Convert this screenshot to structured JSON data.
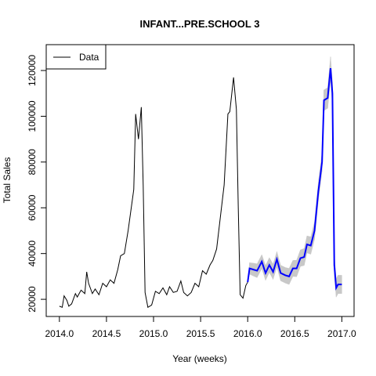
{
  "chart_data": {
    "type": "line",
    "title": "INFANT...PRE.SCHOOL 3",
    "x_label": "Year (weeks)",
    "y_label": "Total Sales",
    "x": [
      2014.0,
      2014.03,
      2014.05,
      2014.08,
      2014.1,
      2014.13,
      2014.17,
      2014.19,
      2014.23,
      2014.27,
      2014.29,
      2014.31,
      2014.35,
      2014.38,
      2014.42,
      2014.46,
      2014.5,
      2014.54,
      2014.58,
      2014.62,
      2014.65,
      2014.69,
      2014.73,
      2014.75,
      2014.79,
      2014.81,
      2014.84,
      2014.87,
      2014.89,
      2014.91,
      2014.94,
      2014.98,
      2015.02,
      2015.06,
      2015.1,
      2015.14,
      2015.17,
      2015.21,
      2015.25,
      2015.29,
      2015.32,
      2015.36,
      2015.4,
      2015.44,
      2015.48,
      2015.52,
      2015.56,
      2015.6,
      2015.63,
      2015.67,
      2015.71,
      2015.75,
      2015.79,
      2015.81,
      2015.85,
      2015.88,
      2015.9,
      2015.92,
      2015.95,
      2015.98,
      2016.0
    ],
    "series": [
      {
        "name": "Data",
        "color": "#000000",
        "values": [
          17000,
          16500,
          21500,
          19500,
          17000,
          18000,
          22500,
          21000,
          24000,
          22500,
          32000,
          27000,
          22500,
          24500,
          22000,
          27000,
          25500,
          28500,
          27000,
          33000,
          39000,
          40000,
          50000,
          56000,
          68000,
          101000,
          90000,
          104000,
          70000,
          23000,
          16500,
          17500,
          23500,
          22500,
          25000,
          22000,
          25500,
          23000,
          23500,
          28000,
          23000,
          21500,
          23000,
          27000,
          25500,
          32500,
          31000,
          35000,
          37000,
          42000,
          56000,
          70000,
          101000,
          102000,
          117000,
          103000,
          60000,
          22000,
          20500,
          26000,
          27500
        ]
      }
    ],
    "forecast": {
      "color": "#0000ff",
      "band_color": "#c8c8c8",
      "x": [
        2016.0,
        2016.02,
        2016.06,
        2016.1,
        2016.15,
        2016.19,
        2016.23,
        2016.27,
        2016.31,
        2016.35,
        2016.4,
        2016.44,
        2016.48,
        2016.52,
        2016.56,
        2016.6,
        2016.63,
        2016.67,
        2016.71,
        2016.75,
        2016.79,
        2016.81,
        2016.85,
        2016.88,
        2016.9,
        2016.92,
        2016.94,
        2016.96,
        2017.0
      ],
      "values": [
        27500,
        33500,
        33000,
        32500,
        36500,
        31500,
        35000,
        32000,
        37500,
        31500,
        30500,
        30000,
        33500,
        33500,
        38000,
        38500,
        44000,
        43500,
        50000,
        67000,
        80000,
        107000,
        108000,
        121000,
        110000,
        35000,
        25000,
        26500,
        26500
      ],
      "lower": [
        27500,
        31000,
        30200,
        29500,
        33500,
        28300,
        31800,
        28700,
        34200,
        28100,
        27100,
        26500,
        30000,
        29900,
        34400,
        34800,
        40300,
        39700,
        46200,
        63000,
        76000,
        102500,
        103500,
        116000,
        105000,
        30500,
        21000,
        22500,
        22500
      ],
      "upper": [
        27500,
        36000,
        35800,
        35500,
        39500,
        34700,
        38200,
        35300,
        40800,
        34900,
        33900,
        33500,
        37000,
        37100,
        41600,
        42200,
        47700,
        47300,
        53800,
        71000,
        84000,
        111500,
        112500,
        126000,
        115000,
        39500,
        29000,
        30500,
        30500
      ]
    },
    "xlim": [
      2013.86,
      2017.13
    ],
    "ylim": [
      12500,
      131300
    ],
    "xticks": [
      {
        "value": 2014,
        "label": "2014.0"
      },
      {
        "value": 2014.5,
        "label": "2014.5"
      },
      {
        "value": 2015,
        "label": "2015.0"
      },
      {
        "value": 2015.5,
        "label": "2015.5"
      },
      {
        "value": 2016,
        "label": "2016.0"
      },
      {
        "value": 2016.5,
        "label": "2016.5"
      },
      {
        "value": 2017,
        "label": "2017.0"
      }
    ],
    "yticks": [
      20000,
      40000,
      60000,
      80000,
      100000,
      120000
    ],
    "legend_position": "top-left"
  }
}
